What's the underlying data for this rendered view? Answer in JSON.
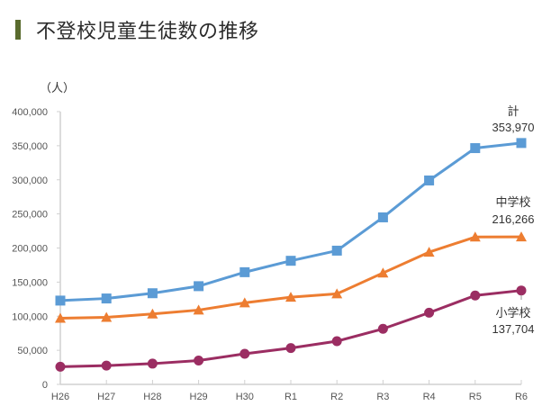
{
  "header": {
    "title": "不登校児童生徒数の推移"
  },
  "colors": {
    "title_bar": "#5a6b2e",
    "total": "#5b9bd5",
    "junior_high": "#ed7d31",
    "elementary": "#9b2d62",
    "axis": "#d0d0d0"
  },
  "chart_data": {
    "type": "line",
    "title": "不登校児童生徒数の推移",
    "ylabel": "（人）",
    "xlabel": "",
    "ylim": [
      0,
      400000
    ],
    "yticks": [
      0,
      50000,
      100000,
      150000,
      200000,
      250000,
      300000,
      350000,
      400000
    ],
    "ytick_labels": [
      "0",
      "50,000",
      "100,000",
      "150,000",
      "200,000",
      "250,000",
      "300,000",
      "350,000",
      "400,000"
    ],
    "grid": false,
    "categories": [
      "H26",
      "H27",
      "H28",
      "H29",
      "H30",
      "R1",
      "R2",
      "R3",
      "R4",
      "R5",
      "R6"
    ],
    "series": [
      {
        "name": "計",
        "marker": "square",
        "color": "#5b9bd5",
        "values": [
          122897,
          125991,
          133683,
          144031,
          164528,
          181272,
          196127,
          244940,
          299048,
          346482,
          353970
        ],
        "end_label": "計",
        "end_value_label": "353,970"
      },
      {
        "name": "中学校",
        "marker": "triangle",
        "color": "#ed7d31",
        "values": [
          97033,
          98408,
          103235,
          108999,
          119687,
          127922,
          132777,
          163442,
          193936,
          216112,
          216266
        ],
        "end_label": "中学校",
        "end_value_label": "216,266"
      },
      {
        "name": "小学校",
        "marker": "circle",
        "color": "#9b2d62",
        "values": [
          25864,
          27583,
          30448,
          35032,
          44841,
          53350,
          63350,
          81498,
          105112,
          130370,
          137704
        ],
        "end_label": "小学校",
        "end_value_label": "137,704"
      }
    ]
  }
}
